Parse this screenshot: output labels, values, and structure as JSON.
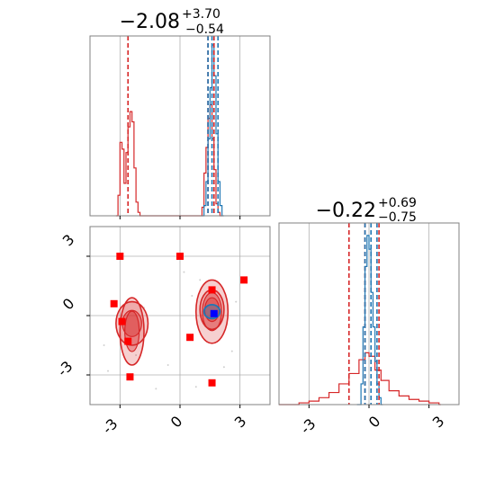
{
  "chart_data": {
    "type": "corner",
    "axis_range": [
      -4.5,
      4.5
    ],
    "ticks": [
      "-3",
      "0",
      "3"
    ],
    "tick_values": [
      -3,
      0,
      3
    ],
    "grid": true,
    "colors": {
      "red": "#d62728",
      "blue": "#1f77b4",
      "marker": "#ff0000",
      "center_marker": "#0000ff",
      "grid": "#b0b0b0",
      "frame": "#808080"
    },
    "panels": [
      {
        "id": "x1",
        "type": "histogram",
        "title": {
          "value": "−2.08",
          "upper": "+3.70",
          "lower": "−0.54"
        },
        "quantile_lines": {
          "red": [
            -2.6,
            1.4,
            1.7
          ],
          "blue": [
            1.4,
            1.6,
            1.9
          ]
        },
        "series": [
          {
            "color": "red",
            "bins": [
              [
                -3.2,
                0.0
              ],
              [
                -3.1,
                0.12
              ],
              [
                -3.0,
                0.43
              ],
              [
                -2.9,
                0.39
              ],
              [
                -2.8,
                0.19
              ],
              [
                -2.7,
                0.37
              ],
              [
                -2.6,
                0.52
              ],
              [
                -2.5,
                0.61
              ],
              [
                -2.4,
                0.55
              ],
              [
                -2.3,
                0.28
              ],
              [
                -2.2,
                0.08
              ],
              [
                -2.1,
                0.02
              ],
              [
                -2.0,
                0.0
              ],
              [
                1.0,
                0.0
              ],
              [
                1.1,
                0.05
              ],
              [
                1.2,
                0.25
              ],
              [
                1.3,
                0.4
              ],
              [
                1.4,
                0.57
              ],
              [
                1.5,
                0.65
              ],
              [
                1.6,
                0.45
              ],
              [
                1.7,
                0.27
              ],
              [
                1.8,
                0.07
              ],
              [
                1.9,
                0.02
              ],
              [
                2.0,
                0.0
              ]
            ]
          },
          {
            "color": "blue",
            "bins": [
              [
                1.1,
                0.0
              ],
              [
                1.2,
                0.06
              ],
              [
                1.3,
                0.2
              ],
              [
                1.4,
                0.45
              ],
              [
                1.5,
                0.75
              ],
              [
                1.6,
                1.0
              ],
              [
                1.7,
                0.82
              ],
              [
                1.8,
                0.48
              ],
              [
                1.9,
                0.2
              ],
              [
                2.0,
                0.06
              ],
              [
                2.1,
                0.0
              ]
            ]
          }
        ]
      },
      {
        "id": "x1_x2",
        "type": "scatter",
        "red_markers": [
          [
            -3.3,
            0.6
          ],
          [
            -3.0,
            3.0
          ],
          [
            -2.9,
            -0.3
          ],
          [
            -2.6,
            -1.3
          ],
          [
            -2.5,
            -3.1
          ],
          [
            0.0,
            3.0
          ],
          [
            0.5,
            -1.1
          ],
          [
            1.6,
            1.3
          ],
          [
            1.6,
            -3.4
          ],
          [
            3.2,
            1.8
          ]
        ],
        "blue_marker": [
          1.7,
          0.1
        ],
        "red_contours": [
          {
            "cx": -2.4,
            "cy": -0.4,
            "rx": 0.8,
            "ry": 1.1
          },
          {
            "cx": -2.4,
            "cy": -0.8,
            "rx": 0.6,
            "ry": 1.7
          },
          {
            "cx": 1.6,
            "cy": 0.3,
            "rx": 0.6,
            "ry": 1.0
          },
          {
            "cx": 1.6,
            "cy": 0.2,
            "rx": 0.8,
            "ry": 1.6
          }
        ],
        "blue_contour": {
          "cx": 1.6,
          "cy": 0.2,
          "rx": 0.4,
          "ry": 0.35
        }
      },
      {
        "id": "x2",
        "type": "histogram",
        "title": {
          "value": "−0.22",
          "upper": "+0.69",
          "lower": "−0.75"
        },
        "quantile_lines": {
          "red": [
            -1.0,
            -0.2,
            0.5
          ],
          "blue": [
            -0.2,
            0.1,
            0.4
          ]
        },
        "series": [
          {
            "color": "red",
            "bins": [
              [
                -4.5,
                0.0
              ],
              [
                -3.5,
                0.01
              ],
              [
                -3.0,
                0.02
              ],
              [
                -2.5,
                0.04
              ],
              [
                -2.0,
                0.07
              ],
              [
                -1.5,
                0.12
              ],
              [
                -1.0,
                0.18
              ],
              [
                -0.5,
                0.26
              ],
              [
                -0.2,
                0.3
              ],
              [
                0.0,
                0.28
              ],
              [
                0.3,
                0.2
              ],
              [
                0.6,
                0.14
              ],
              [
                1.0,
                0.08
              ],
              [
                1.5,
                0.05
              ],
              [
                2.0,
                0.03
              ],
              [
                2.5,
                0.02
              ],
              [
                3.0,
                0.01
              ],
              [
                3.5,
                0.0
              ]
            ]
          },
          {
            "color": "blue",
            "bins": [
              [
                -0.6,
                0.0
              ],
              [
                -0.4,
                0.12
              ],
              [
                -0.3,
                0.45
              ],
              [
                -0.2,
                0.8
              ],
              [
                -0.1,
                0.98
              ],
              [
                0.0,
                0.9
              ],
              [
                0.1,
                0.65
              ],
              [
                0.2,
                0.45
              ],
              [
                0.3,
                0.25
              ],
              [
                0.4,
                0.12
              ],
              [
                0.5,
                0.04
              ],
              [
                0.6,
                0.0
              ]
            ]
          }
        ]
      }
    ]
  }
}
